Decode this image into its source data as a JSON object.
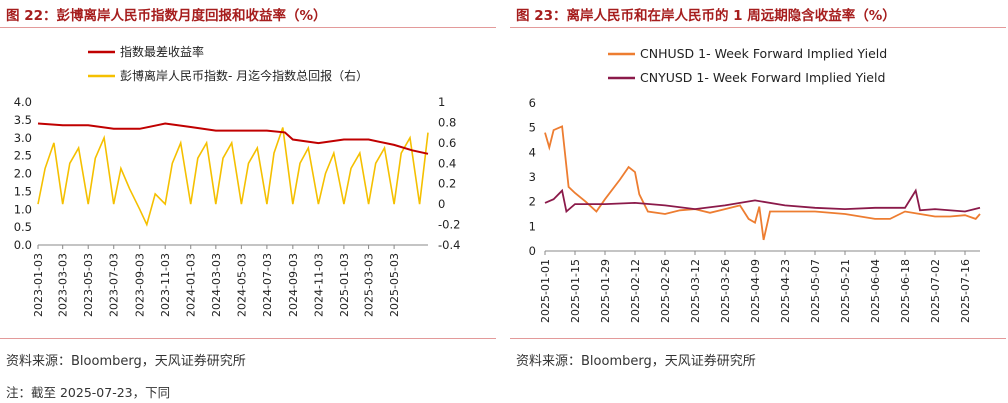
{
  "left": {
    "title": "图 22：彭博离岸人民币指数月度回报和收益率（%）",
    "source": "资料来源：Bloomberg，天风证券研究所",
    "note": "注：截至 2025-07-23，下同",
    "chart_data": {
      "type": "line",
      "title": "",
      "xlabel": "",
      "ylabel": "",
      "x_ticks": [
        "2023-01-03",
        "2023-03-03",
        "2023-05-03",
        "2023-07-03",
        "2023-09-03",
        "2023-11-03",
        "2024-01-03",
        "2024-03-03",
        "2024-05-03",
        "2024-07-03",
        "2024-09-03",
        "2024-11-03",
        "2025-01-03",
        "2025-03-03",
        "2025-05-03"
      ],
      "ylim_left": [
        0,
        4
      ],
      "yticks_left": [
        "0.0",
        "0.5",
        "1.0",
        "1.5",
        "2.0",
        "2.5",
        "3.0",
        "3.5",
        "4.0"
      ],
      "ylim_right": [
        -0.4,
        1
      ],
      "yticks_right": [
        "1",
        "0.8",
        "0.6",
        "0.4",
        "0.2",
        "0",
        "-0.2",
        "-0.4"
      ],
      "legend_position": "top",
      "colors": {
        "yield": "#c00000",
        "return": "#f5c000"
      },
      "series": [
        {
          "name": "指数最差收益率",
          "axis": "left",
          "color": "#c00000",
          "x": [
            "2023-01-03",
            "2023-03-03",
            "2023-05-03",
            "2023-07-03",
            "2023-09-03",
            "2023-10-15",
            "2023-11-03",
            "2024-01-03",
            "2024-03-03",
            "2024-05-03",
            "2024-07-03",
            "2024-08-15",
            "2024-09-03",
            "2024-11-03",
            "2025-01-03",
            "2025-03-03",
            "2025-05-03",
            "2025-06-15",
            "2025-07-23"
          ],
          "values": [
            3.4,
            3.35,
            3.35,
            3.25,
            3.25,
            3.35,
            3.4,
            3.3,
            3.2,
            3.2,
            3.2,
            3.15,
            2.95,
            2.85,
            2.95,
            2.95,
            2.8,
            2.65,
            2.55
          ]
        },
        {
          "name": "彭博离岸人民币指数- 月迄今指数总回报（右）",
          "axis": "right",
          "color": "#f5c000",
          "x": [
            "2023-01-03",
            "2023-01-20",
            "2023-02-10",
            "2023-03-03",
            "2023-03-20",
            "2023-04-10",
            "2023-05-03",
            "2023-05-20",
            "2023-06-10",
            "2023-07-03",
            "2023-07-20",
            "2023-08-10",
            "2023-09-03",
            "2023-09-20",
            "2023-10-10",
            "2023-11-03",
            "2023-11-20",
            "2023-12-10",
            "2024-01-03",
            "2024-01-20",
            "2024-02-10",
            "2024-03-03",
            "2024-03-20",
            "2024-04-10",
            "2024-05-03",
            "2024-05-20",
            "2024-06-10",
            "2024-07-03",
            "2024-07-20",
            "2024-08-10",
            "2024-09-03",
            "2024-09-20",
            "2024-10-10",
            "2024-11-03",
            "2024-11-20",
            "2024-12-10",
            "2025-01-03",
            "2025-01-20",
            "2025-02-10",
            "2025-03-03",
            "2025-03-20",
            "2025-04-10",
            "2025-05-03",
            "2025-05-20",
            "2025-06-10",
            "2025-07-03",
            "2025-07-23"
          ],
          "values": [
            0.0,
            0.35,
            0.6,
            0.0,
            0.4,
            0.55,
            0.0,
            0.45,
            0.65,
            0.0,
            0.35,
            0.15,
            -0.05,
            -0.2,
            0.1,
            0.0,
            0.4,
            0.6,
            0.0,
            0.45,
            0.6,
            0.0,
            0.45,
            0.6,
            0.0,
            0.4,
            0.55,
            0.0,
            0.5,
            0.75,
            0.0,
            0.4,
            0.55,
            0.0,
            0.3,
            0.5,
            0.0,
            0.35,
            0.5,
            0.0,
            0.4,
            0.55,
            0.0,
            0.5,
            0.65,
            0.0,
            0.7
          ]
        }
      ]
    }
  },
  "right": {
    "title": "图 23：离岸人民币和在岸人民币的 1 周远期隐含收益率（%）",
    "source": "资料来源：Bloomberg，天风证券研究所",
    "chart_data": {
      "type": "line",
      "title": "",
      "xlabel": "",
      "ylabel": "",
      "x_ticks": [
        "2025-01-01",
        "2025-01-15",
        "2025-01-29",
        "2025-02-12",
        "2025-02-26",
        "2025-03-12",
        "2025-03-26",
        "2025-04-09",
        "2025-04-23",
        "2025-05-07",
        "2025-05-21",
        "2025-06-04",
        "2025-06-18",
        "2025-07-02",
        "2025-07-16"
      ],
      "ylim": [
        0,
        6
      ],
      "yticks": [
        "0",
        "1",
        "2",
        "3",
        "4",
        "5",
        "6"
      ],
      "legend_position": "top",
      "colors": {
        "cnh": "#ed7d31",
        "cny": "#8b1a4a"
      },
      "series": [
        {
          "name": "CNHUSD 1- Week Forward Implied Yield",
          "color": "#ed7d31",
          "x": [
            "2025-01-01",
            "2025-01-03",
            "2025-01-05",
            "2025-01-09",
            "2025-01-12",
            "2025-01-15",
            "2025-01-20",
            "2025-01-25",
            "2025-01-29",
            "2025-02-05",
            "2025-02-09",
            "2025-02-12",
            "2025-02-14",
            "2025-02-18",
            "2025-02-26",
            "2025-03-05",
            "2025-03-12",
            "2025-03-19",
            "2025-03-26",
            "2025-04-02",
            "2025-04-06",
            "2025-04-09",
            "2025-04-11",
            "2025-04-13",
            "2025-04-16",
            "2025-04-23",
            "2025-05-07",
            "2025-05-21",
            "2025-06-04",
            "2025-06-11",
            "2025-06-18",
            "2025-06-25",
            "2025-07-02",
            "2025-07-09",
            "2025-07-16",
            "2025-07-21",
            "2025-07-23"
          ],
          "values": [
            4.8,
            4.2,
            4.9,
            5.05,
            2.6,
            2.35,
            2.0,
            1.6,
            2.1,
            2.9,
            3.4,
            3.2,
            2.3,
            1.6,
            1.5,
            1.65,
            1.7,
            1.55,
            1.7,
            1.85,
            1.3,
            1.15,
            1.8,
            0.45,
            1.6,
            1.6,
            1.6,
            1.5,
            1.3,
            1.3,
            1.6,
            1.5,
            1.4,
            1.4,
            1.45,
            1.3,
            1.5
          ]
        },
        {
          "name": "CNYUSD 1- Week Forward Implied Yield",
          "color": "#8b1a4a",
          "x": [
            "2025-01-01",
            "2025-01-05",
            "2025-01-09",
            "2025-01-11",
            "2025-01-15",
            "2025-01-29",
            "2025-02-12",
            "2025-02-26",
            "2025-03-12",
            "2025-03-26",
            "2025-04-09",
            "2025-04-23",
            "2025-05-07",
            "2025-05-21",
            "2025-06-04",
            "2025-06-18",
            "2025-06-23",
            "2025-06-25",
            "2025-07-02",
            "2025-07-16",
            "2025-07-23"
          ],
          "values": [
            1.95,
            2.1,
            2.45,
            1.6,
            1.9,
            1.9,
            1.95,
            1.85,
            1.7,
            1.85,
            2.05,
            1.85,
            1.75,
            1.7,
            1.75,
            1.75,
            2.45,
            1.65,
            1.7,
            1.6,
            1.75
          ]
        }
      ]
    }
  }
}
